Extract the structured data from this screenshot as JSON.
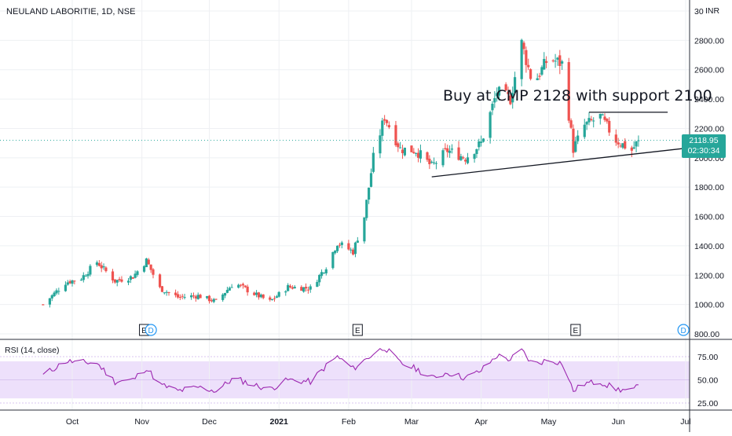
{
  "header": {
    "symbol_line": "NEULAND LABORITIE, 1D, NSE",
    "currency": "INR"
  },
  "last_price": {
    "value": "2118.95",
    "countdown": "02:30:34"
  },
  "annotation": {
    "text": "Buy at CMP 2128 with support 2100"
  },
  "rsi_panel": {
    "label": "RSI (14, close)"
  },
  "colors": {
    "up": "#26a69a",
    "down": "#ef5350",
    "rsi_line": "#9c27b0",
    "rsi_band": "#ede0fb",
    "grid": "#eef0f3",
    "last_price": "#26a69a"
  },
  "chart_data": [
    {
      "type": "candlestick",
      "title": "NEULAND LABORITIE, 1D, NSE",
      "y_axis": {
        "ticks": [
          800,
          1000,
          1200,
          1400,
          1600,
          1800,
          2000,
          2200,
          2400,
          2600,
          2800,
          3000
        ],
        "range": [
          780,
          3020
        ],
        "side": "right"
      },
      "x_axis": {
        "ticks": [
          "Oct",
          "Nov",
          "Dec",
          "2021",
          "Feb",
          "Mar",
          "Apr",
          "May",
          "Jun",
          "Jul"
        ]
      },
      "series": [
        {
          "name": "price",
          "anchors": [
            [
              "Sep 18",
              1000
            ],
            [
              "Sep 28",
              1150
            ],
            [
              "Oct 5",
              1180
            ],
            [
              "Oct 12",
              1290
            ],
            [
              "Oct 20",
              1160
            ],
            [
              "Oct 28",
              1190
            ],
            [
              "Nov 3",
              1300
            ],
            [
              "Nov 9",
              1110
            ],
            [
              "Nov 17",
              1050
            ],
            [
              "Nov 26",
              1060
            ],
            [
              "Dec 4",
              1020
            ],
            [
              "Dec 12",
              1150
            ],
            [
              "Dec 20",
              1080
            ],
            [
              "Dec 28",
              1020
            ],
            [
              "Jan 5",
              1120
            ],
            [
              "Jan 15",
              1110
            ],
            [
              "Jan 22",
              1260
            ],
            [
              "Jan 27",
              1420
            ],
            [
              "Feb 3",
              1360
            ],
            [
              "Feb 8",
              1600
            ],
            [
              "Feb 12",
              2000
            ],
            [
              "Feb 17",
              2280
            ],
            [
              "Feb 24",
              2060
            ],
            [
              "Mar 3",
              2050
            ],
            [
              "Mar 10",
              1940
            ],
            [
              "Mar 17",
              2050
            ],
            [
              "Mar 25",
              2000
            ],
            [
              "Apr 1",
              2100
            ],
            [
              "Apr 8",
              2450
            ],
            [
              "Apr 14",
              2400
            ],
            [
              "Apr 19",
              2780
            ],
            [
              "Apr 24",
              2500
            ],
            [
              "May 1",
              2680
            ],
            [
              "May 7",
              2640
            ],
            [
              "May 12",
              2060
            ],
            [
              "May 17",
              2220
            ],
            [
              "May 24",
              2280
            ],
            [
              "May 31",
              2120
            ],
            [
              "Jun 7",
              2050
            ],
            [
              "Jun 10",
              2118.95
            ]
          ]
        }
      ],
      "annotations": [
        {
          "text": "Buy at CMP 2128 with support 2100"
        },
        {
          "type": "trendline",
          "points": [
            [
              "Mar 10",
              1870
            ],
            [
              "Jul 1",
              2065
            ]
          ]
        },
        {
          "type": "hline",
          "value": 2310,
          "from": "May 19",
          "to": "Jun 23"
        },
        {
          "type": "hline",
          "value": 2118.95,
          "style": "dotted"
        }
      ],
      "events": [
        {
          "date": "Nov 2",
          "label": "E"
        },
        {
          "date": "Nov 5",
          "label": "D"
        },
        {
          "date": "Feb 5",
          "label": "E"
        },
        {
          "date": "May 13",
          "label": "E"
        },
        {
          "date": "Jun 30",
          "label": "D"
        }
      ],
      "grid": true
    },
    {
      "type": "line",
      "title": "RSI (14, close)",
      "y_axis": {
        "ticks": [
          25,
          50,
          75
        ],
        "range": [
          10,
          90
        ],
        "band": [
          30,
          70
        ]
      },
      "series": [
        {
          "name": "RSI (14, close)",
          "anchors": [
            [
              "Sep 18",
              55
            ],
            [
              "Sep 28",
              70
            ],
            [
              "Oct 12",
              68
            ],
            [
              "Oct 20",
              48
            ],
            [
              "Oct 28",
              50
            ],
            [
              "Nov 3",
              63
            ],
            [
              "Nov 9",
              45
            ],
            [
              "Nov 17",
              38
            ],
            [
              "Nov 26",
              42
            ],
            [
              "Dec 4",
              38
            ],
            [
              "Dec 12",
              52
            ],
            [
              "Dec 20",
              45
            ],
            [
              "Dec 28",
              40
            ],
            [
              "Jan 5",
              50
            ],
            [
              "Jan 15",
              48
            ],
            [
              "Jan 22",
              65
            ],
            [
              "Jan 27",
              75
            ],
            [
              "Feb 3",
              62
            ],
            [
              "Feb 12",
              78
            ],
            [
              "Feb 17",
              85
            ],
            [
              "Feb 24",
              68
            ],
            [
              "Mar 3",
              62
            ],
            [
              "Mar 10",
              52
            ],
            [
              "Mar 17",
              58
            ],
            [
              "Mar 25",
              52
            ],
            [
              "Apr 1",
              60
            ],
            [
              "Apr 8",
              76
            ],
            [
              "Apr 14",
              72
            ],
            [
              "Apr 19",
              82
            ],
            [
              "Apr 24",
              66
            ],
            [
              "May 1",
              72
            ],
            [
              "May 7",
              68
            ],
            [
              "May 12",
              38
            ],
            [
              "May 17",
              46
            ],
            [
              "May 24",
              48
            ],
            [
              "May 31",
              40
            ],
            [
              "Jun 7",
              38
            ],
            [
              "Jun 10",
              43
            ]
          ]
        }
      ]
    }
  ]
}
